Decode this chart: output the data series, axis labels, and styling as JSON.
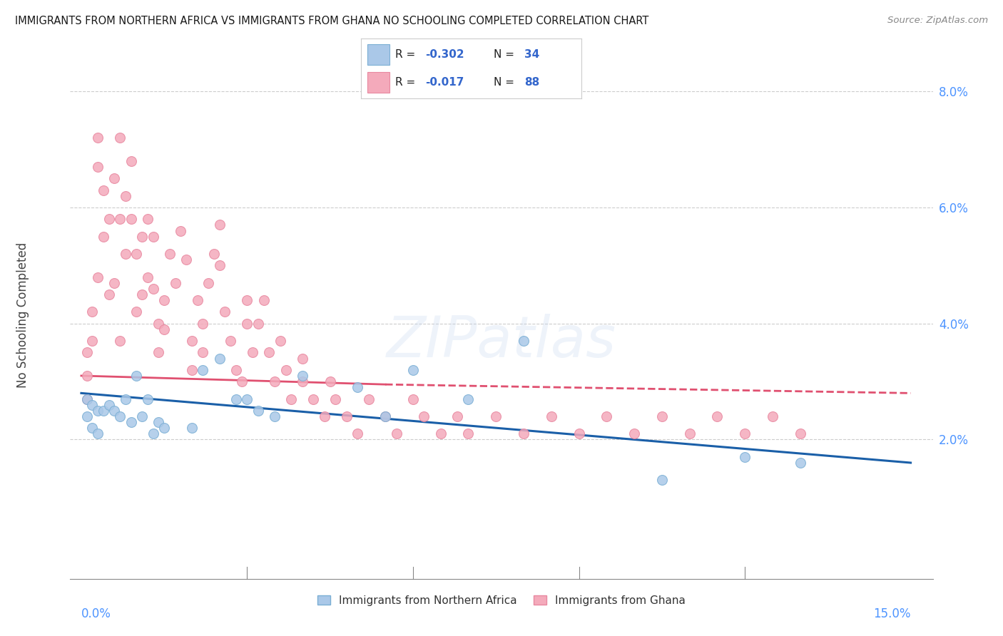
{
  "title": "IMMIGRANTS FROM NORTHERN AFRICA VS IMMIGRANTS FROM GHANA NO SCHOOLING COMPLETED CORRELATION CHART",
  "source": "Source: ZipAtlas.com",
  "ylabel": "No Schooling Completed",
  "y_tick_labels": [
    "2.0%",
    "4.0%",
    "6.0%",
    "8.0%"
  ],
  "y_tick_values": [
    0.02,
    0.04,
    0.06,
    0.08
  ],
  "xlim": [
    0.0,
    0.15
  ],
  "ylim": [
    0.0,
    0.085
  ],
  "watermark": "ZIPatlas",
  "background_color": "#ffffff",
  "grid_color": "#cccccc",
  "title_color": "#1a1a1a",
  "tick_color": "#4d94ff",
  "blue_scatter_color": "#aac8e8",
  "blue_edge_color": "#7bafd4",
  "pink_scatter_color": "#f4aabb",
  "pink_edge_color": "#e888a0",
  "blue_line_color": "#1a5fa8",
  "pink_line_color": "#e05070",
  "x_blue": [
    0.001,
    0.001,
    0.002,
    0.002,
    0.003,
    0.003,
    0.004,
    0.005,
    0.006,
    0.007,
    0.008,
    0.009,
    0.01,
    0.011,
    0.012,
    0.013,
    0.014,
    0.015,
    0.02,
    0.022,
    0.025,
    0.028,
    0.03,
    0.032,
    0.035,
    0.04,
    0.05,
    0.055,
    0.06,
    0.07,
    0.08,
    0.105,
    0.12,
    0.13
  ],
  "y_blue": [
    0.027,
    0.024,
    0.026,
    0.022,
    0.025,
    0.021,
    0.025,
    0.026,
    0.025,
    0.024,
    0.027,
    0.023,
    0.031,
    0.024,
    0.027,
    0.021,
    0.023,
    0.022,
    0.022,
    0.032,
    0.034,
    0.027,
    0.027,
    0.025,
    0.024,
    0.031,
    0.029,
    0.024,
    0.032,
    0.027,
    0.037,
    0.013,
    0.017,
    0.016
  ],
  "x_pink": [
    0.001,
    0.001,
    0.001,
    0.002,
    0.002,
    0.003,
    0.003,
    0.003,
    0.004,
    0.004,
    0.005,
    0.005,
    0.006,
    0.006,
    0.007,
    0.007,
    0.007,
    0.008,
    0.008,
    0.009,
    0.009,
    0.01,
    0.01,
    0.011,
    0.011,
    0.012,
    0.012,
    0.013,
    0.013,
    0.014,
    0.014,
    0.015,
    0.015,
    0.016,
    0.017,
    0.018,
    0.019,
    0.02,
    0.02,
    0.021,
    0.022,
    0.022,
    0.023,
    0.024,
    0.025,
    0.025,
    0.026,
    0.027,
    0.028,
    0.029,
    0.03,
    0.03,
    0.031,
    0.032,
    0.033,
    0.034,
    0.035,
    0.036,
    0.037,
    0.038,
    0.04,
    0.04,
    0.042,
    0.044,
    0.045,
    0.046,
    0.048,
    0.05,
    0.052,
    0.055,
    0.057,
    0.06,
    0.062,
    0.065,
    0.068,
    0.07,
    0.075,
    0.08,
    0.085,
    0.09,
    0.095,
    0.1,
    0.105,
    0.11,
    0.115,
    0.12,
    0.125,
    0.13
  ],
  "y_pink": [
    0.035,
    0.031,
    0.027,
    0.042,
    0.037,
    0.072,
    0.067,
    0.048,
    0.063,
    0.055,
    0.058,
    0.045,
    0.065,
    0.047,
    0.072,
    0.058,
    0.037,
    0.062,
    0.052,
    0.068,
    0.058,
    0.052,
    0.042,
    0.055,
    0.045,
    0.058,
    0.048,
    0.055,
    0.046,
    0.04,
    0.035,
    0.044,
    0.039,
    0.052,
    0.047,
    0.056,
    0.051,
    0.037,
    0.032,
    0.044,
    0.04,
    0.035,
    0.047,
    0.052,
    0.057,
    0.05,
    0.042,
    0.037,
    0.032,
    0.03,
    0.044,
    0.04,
    0.035,
    0.04,
    0.044,
    0.035,
    0.03,
    0.037,
    0.032,
    0.027,
    0.034,
    0.03,
    0.027,
    0.024,
    0.03,
    0.027,
    0.024,
    0.021,
    0.027,
    0.024,
    0.021,
    0.027,
    0.024,
    0.021,
    0.024,
    0.021,
    0.024,
    0.021,
    0.024,
    0.021,
    0.024,
    0.021,
    0.024,
    0.021,
    0.024,
    0.021,
    0.024,
    0.021
  ]
}
